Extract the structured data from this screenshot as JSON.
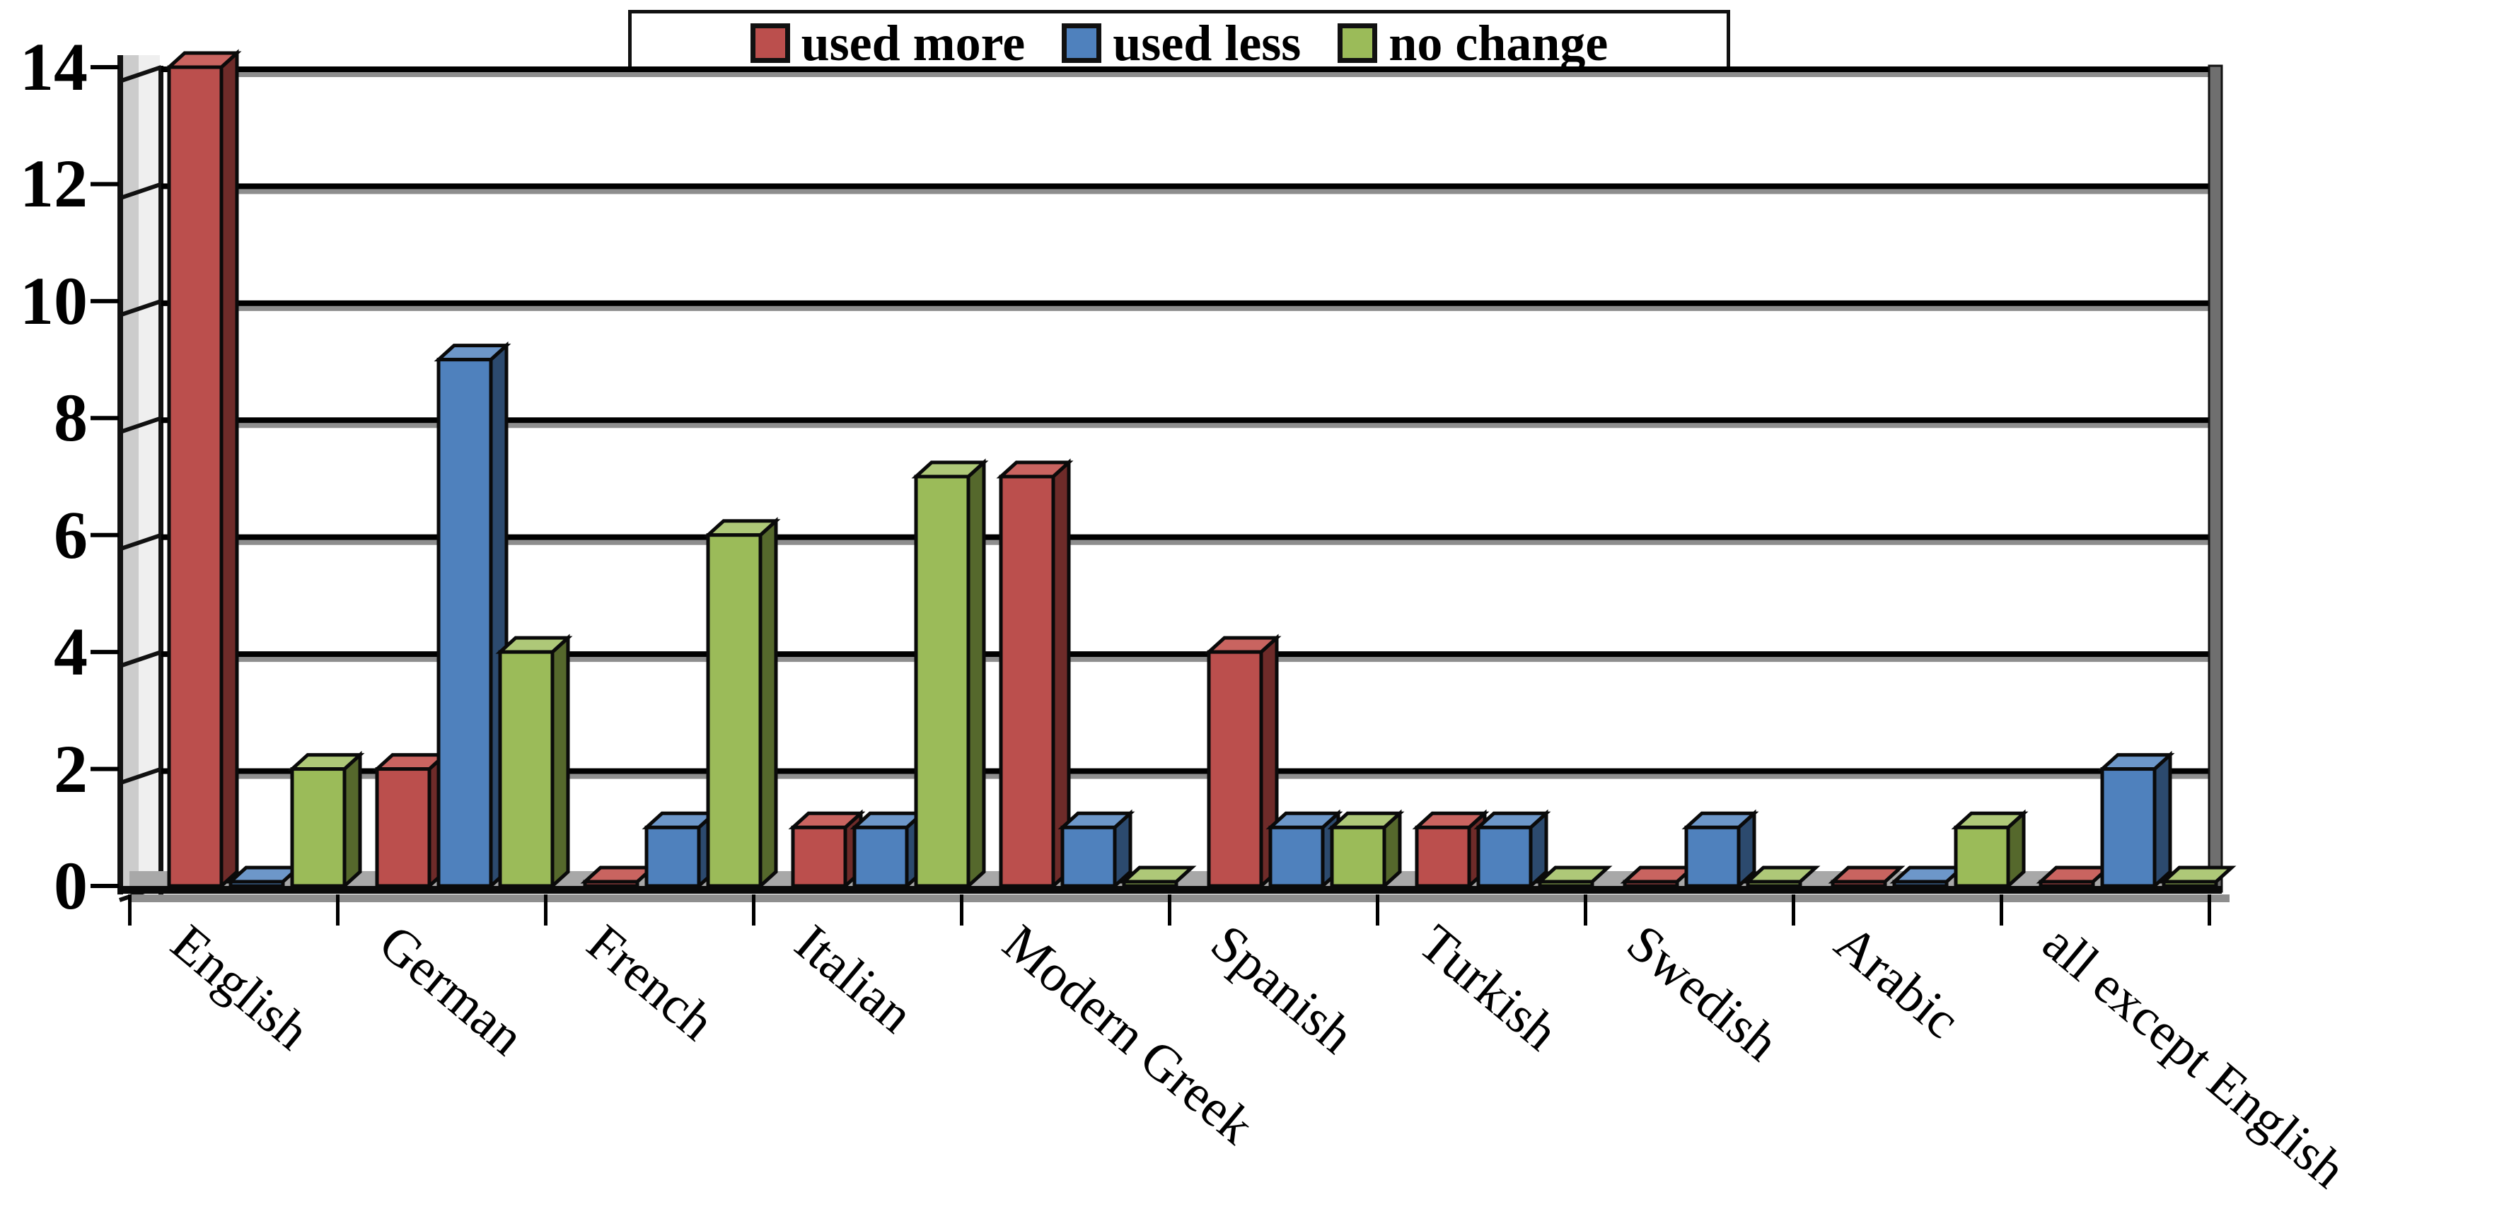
{
  "legend": {
    "items": [
      {
        "label": "used more",
        "color": "#bb4f4d"
      },
      {
        "label": "used less",
        "color": "#4f81bd"
      },
      {
        "label": "no change",
        "color": "#9bbb59"
      }
    ]
  },
  "chart_data": {
    "type": "bar",
    "style": "3d-clustered",
    "title": "",
    "xlabel": "",
    "ylabel": "",
    "categories": [
      "English",
      "German",
      "French",
      "Italian",
      "Modern Greek",
      "Spanish",
      "Turkish",
      "Swedish",
      "Arabic",
      "all except English"
    ],
    "series": [
      {
        "name": "used more",
        "color": "#bb4f4d",
        "color_top": "#c96460",
        "color_side": "#6e2b29",
        "values": [
          14,
          2,
          0,
          1,
          7,
          4,
          1,
          0,
          0,
          0
        ]
      },
      {
        "name": "used less",
        "color": "#4f81bd",
        "color_top": "#6d97c9",
        "color_side": "#2c4a6e",
        "values": [
          0,
          9,
          1,
          1,
          1,
          1,
          1,
          1,
          0,
          2
        ]
      },
      {
        "name": "no change",
        "color": "#9bbb59",
        "color_top": "#aec878",
        "color_side": "#55682c",
        "values": [
          2,
          4,
          6,
          7,
          0,
          1,
          0,
          0,
          1,
          0
        ]
      }
    ],
    "ylim": [
      0,
      14
    ],
    "y_ticks": [
      0,
      2,
      4,
      6,
      8,
      10,
      12,
      14
    ],
    "grid": true,
    "legend_position": "top",
    "gridline_color": "#000000",
    "gridline_shadow_color": "#8e8e8e",
    "floor_color": "#a8a8a8",
    "wall_side_color": "#6f6f6f"
  }
}
